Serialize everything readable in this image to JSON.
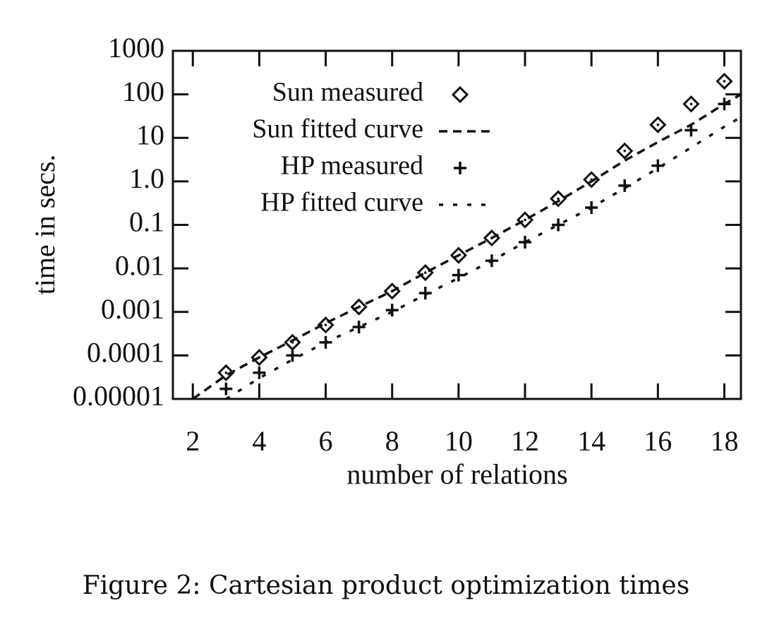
{
  "chart_data": {
    "type": "line",
    "caption": "Figure 2: Cartesian product optimization times",
    "xlabel": "number of relations",
    "ylabel": "time in secs.",
    "xlim": [
      1.4,
      18.5
    ],
    "xticks": [
      2,
      4,
      6,
      8,
      10,
      12,
      14,
      16,
      18
    ],
    "ylim": [
      1e-05,
      1000
    ],
    "yticks": [
      1e-05,
      0.0001,
      0.001,
      0.01,
      0.1,
      {
        "value": 1,
        "label": "1.0"
      },
      10,
      100,
      1000
    ],
    "log_y": true,
    "legend": "top-left",
    "series": [
      {
        "name": "Sun measured",
        "color": "#111111",
        "marker": "diamond",
        "line": "none",
        "x": [
          3,
          4,
          5,
          6,
          7,
          8,
          9,
          10,
          11,
          12,
          13,
          14,
          15,
          16,
          17,
          18
        ],
        "values": [
          4e-05,
          9e-05,
          0.0002,
          0.0005,
          0.0013,
          0.003,
          0.008,
          0.02,
          0.05,
          0.13,
          0.4,
          1.1,
          5,
          20,
          60,
          200
        ]
      },
      {
        "name": "Sun fitted curve",
        "color": "#111111",
        "marker": "none",
        "line": "dashed",
        "x": [
          2,
          3,
          4,
          5,
          6,
          7,
          8,
          9,
          10,
          11,
          12,
          13,
          14,
          15,
          16,
          17,
          18,
          18.5
        ],
        "values": [
          1e-05,
          3.5e-05,
          9e-05,
          0.00022,
          0.00055,
          0.0013,
          0.003,
          0.008,
          0.02,
          0.05,
          0.13,
          0.35,
          1,
          3,
          8,
          20,
          60,
          100
        ]
      },
      {
        "name": "HP measured",
        "color": "#111111",
        "marker": "plus",
        "line": "none",
        "x": [
          3,
          4,
          5,
          6,
          7,
          8,
          9,
          10,
          11,
          12,
          13,
          14,
          15,
          16,
          17,
          18
        ],
        "values": [
          1.7e-05,
          4e-05,
          0.0001,
          0.0002,
          0.00045,
          0.0011,
          0.0027,
          0.007,
          0.015,
          0.04,
          0.1,
          0.25,
          0.8,
          2.3,
          15,
          60
        ]
      },
      {
        "name": "HP fitted curve",
        "color": "#111111",
        "marker": "none",
        "line": "dotted",
        "x": [
          3,
          4,
          5,
          6,
          7,
          8,
          9,
          10,
          11,
          12,
          13,
          14,
          15,
          16,
          17,
          18,
          18.5
        ],
        "values": [
          1e-05,
          3e-05,
          8e-05,
          0.0002,
          0.00045,
          0.001,
          0.0025,
          0.006,
          0.015,
          0.04,
          0.1,
          0.25,
          0.7,
          2,
          6,
          18,
          30
        ]
      }
    ]
  }
}
